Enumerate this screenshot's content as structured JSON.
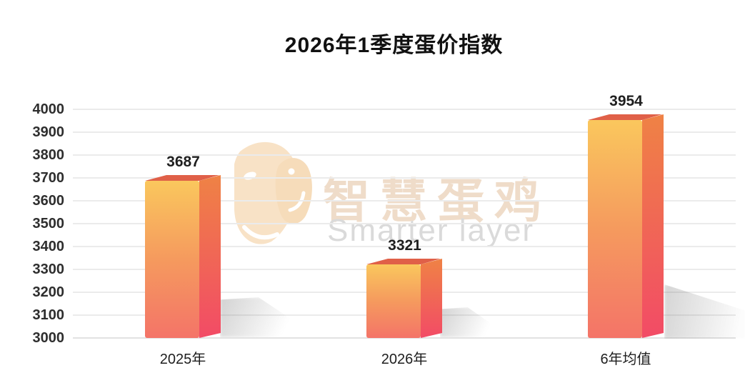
{
  "watermark": {
    "brand_cn": "智慧蛋鸡",
    "brand_en": "Smarter layer",
    "logo_icon": "chick-logo-icon",
    "logo_color": "#F8E2C6",
    "cn_color": "#EFDCC9",
    "en_color": "#DADADA"
  },
  "chart_data": {
    "type": "bar",
    "title": "2026年1季度蛋价指数",
    "categories": [
      "2025年",
      "2026年",
      "6年均值"
    ],
    "values": [
      3687,
      3321,
      3954
    ],
    "data_labels": [
      "3687",
      "3321",
      "3954"
    ],
    "xlabel": "",
    "ylabel": "",
    "ylim": [
      3000,
      4000
    ],
    "ytick_step": 100,
    "yticks": [
      3000,
      3100,
      3200,
      3300,
      3400,
      3500,
      3600,
      3700,
      3800,
      3900,
      4000
    ],
    "grid": true,
    "legend": null,
    "style": {
      "bar_front_gradient": [
        "#FAC75D",
        "#F59A5E",
        "#F47468"
      ],
      "bar_side_gradient": [
        "#EF8245",
        "#F24B66"
      ],
      "bar_top_color": "#E06048",
      "grid_color": "#ebebeb",
      "label_color": "#1f1f1f"
    }
  }
}
